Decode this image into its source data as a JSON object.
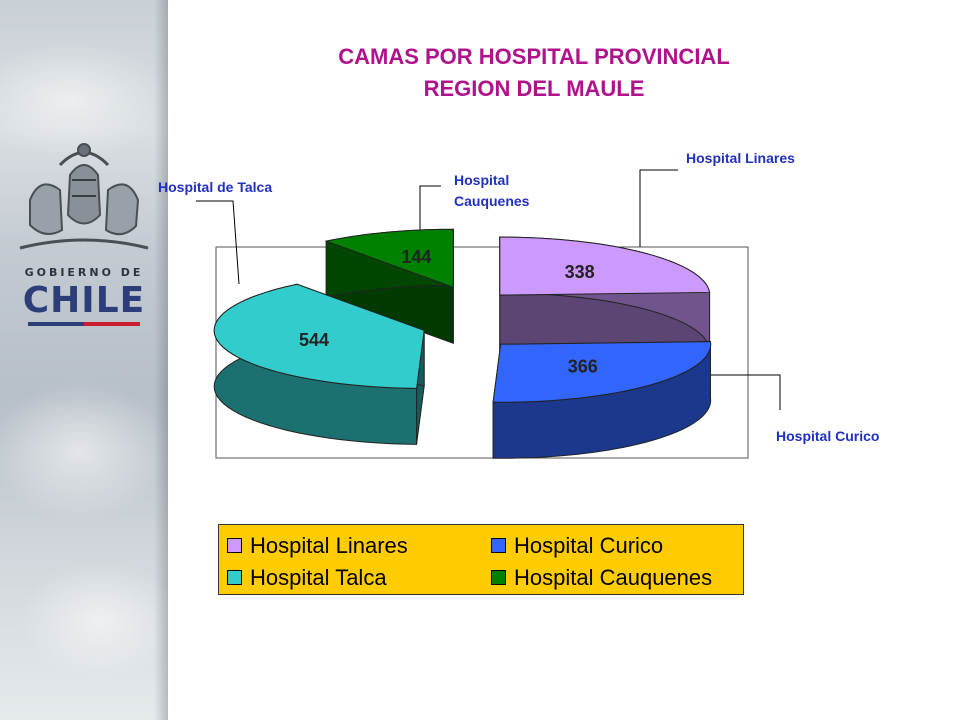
{
  "title_line1": "CAMAS POR HOSPITAL PROVINCIAL",
  "title_line2": "REGION DEL MAULE",
  "logo": {
    "line1": "GOBIERNO DE",
    "line2": "CHILE"
  },
  "callouts": {
    "talca": "Hospital de Talca",
    "cauquenes_1": "Hospital",
    "cauquenes_2": "Cauquenes",
    "linares": "Hospital Linares",
    "curico": "Hospital Curico"
  },
  "chart_data": {
    "type": "pie",
    "style": "3d-exploded",
    "slices": [
      {
        "label": "Hospital Linares",
        "value": 338,
        "color": "#cc99ff"
      },
      {
        "label": "Hospital Curico",
        "value": 366,
        "color": "#3366ff"
      },
      {
        "label": "Hospital Talca",
        "value": 544,
        "color": "#33cccc"
      },
      {
        "label": "Hospital Cauquenes",
        "value": 144,
        "color": "#008000"
      }
    ],
    "legend": {
      "position": "bottom",
      "items": [
        {
          "label": "Hospital Linares",
          "color": "#cc99ff"
        },
        {
          "label": "Hospital Curico",
          "color": "#3366ff"
        },
        {
          "label": "Hospital Talca",
          "color": "#33cccc"
        },
        {
          "label": "Hospital Cauquenes",
          "color": "#008000"
        }
      ],
      "background": "#ffcc00"
    }
  }
}
